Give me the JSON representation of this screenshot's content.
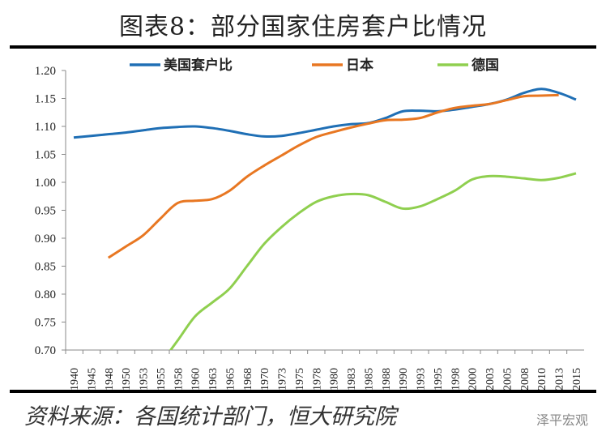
{
  "title": "图表8：部分国家住房套户比情况",
  "source": "资料来源：各国统计部门，恒大研究院",
  "watermark": "泽平宏观",
  "chart_data": {
    "type": "line",
    "title": "图表8：部分国家住房套户比情况",
    "legend_position": "top",
    "grid": false,
    "ylim": [
      0.7,
      1.2
    ],
    "yticks": [
      "0.70",
      "0.75",
      "0.80",
      "0.85",
      "0.90",
      "0.95",
      "1.00",
      "1.05",
      "1.10",
      "1.15",
      "1.20"
    ],
    "categories": [
      "1940",
      "1945",
      "1948",
      "1950",
      "1953",
      "1955",
      "1958",
      "1960",
      "1963",
      "1965",
      "1968",
      "1970",
      "1973",
      "1975",
      "1978",
      "1980",
      "1983",
      "1985",
      "1988",
      "1990",
      "1993",
      "1995",
      "1998",
      "2000",
      "2003",
      "2005",
      "2008",
      "2010",
      "2013",
      "2015"
    ],
    "series": [
      {
        "name": "美国套户比",
        "color": "#1f6fb5",
        "values": [
          1.08,
          1.083,
          1.086,
          1.089,
          1.093,
          1.097,
          1.099,
          1.1,
          1.097,
          1.092,
          1.086,
          1.082,
          1.083,
          1.088,
          1.094,
          1.1,
          1.104,
          1.106,
          1.115,
          1.127,
          1.128,
          1.127,
          1.13,
          1.135,
          1.14,
          1.148,
          1.16,
          1.167,
          1.16,
          1.148
        ]
      },
      {
        "name": "日本",
        "color": "#e87722",
        "values": [
          null,
          null,
          0.865,
          0.885,
          0.905,
          0.935,
          0.963,
          0.967,
          0.97,
          0.985,
          1.01,
          1.03,
          1.048,
          1.066,
          1.081,
          1.09,
          1.098,
          1.105,
          1.111,
          1.112,
          1.115,
          1.125,
          1.133,
          1.137,
          1.14,
          1.147,
          1.154,
          1.155,
          1.156,
          null
        ]
      },
      {
        "name": "德国",
        "color": "#8fcf4f",
        "values": [
          null,
          null,
          null,
          null,
          null,
          0.675,
          0.717,
          0.76,
          0.785,
          0.81,
          0.85,
          0.89,
          0.92,
          0.945,
          0.965,
          0.975,
          0.979,
          0.977,
          0.965,
          0.953,
          0.957,
          0.97,
          0.985,
          1.005,
          1.011,
          1.01,
          1.007,
          1.004,
          1.008,
          1.016
        ]
      }
    ]
  }
}
